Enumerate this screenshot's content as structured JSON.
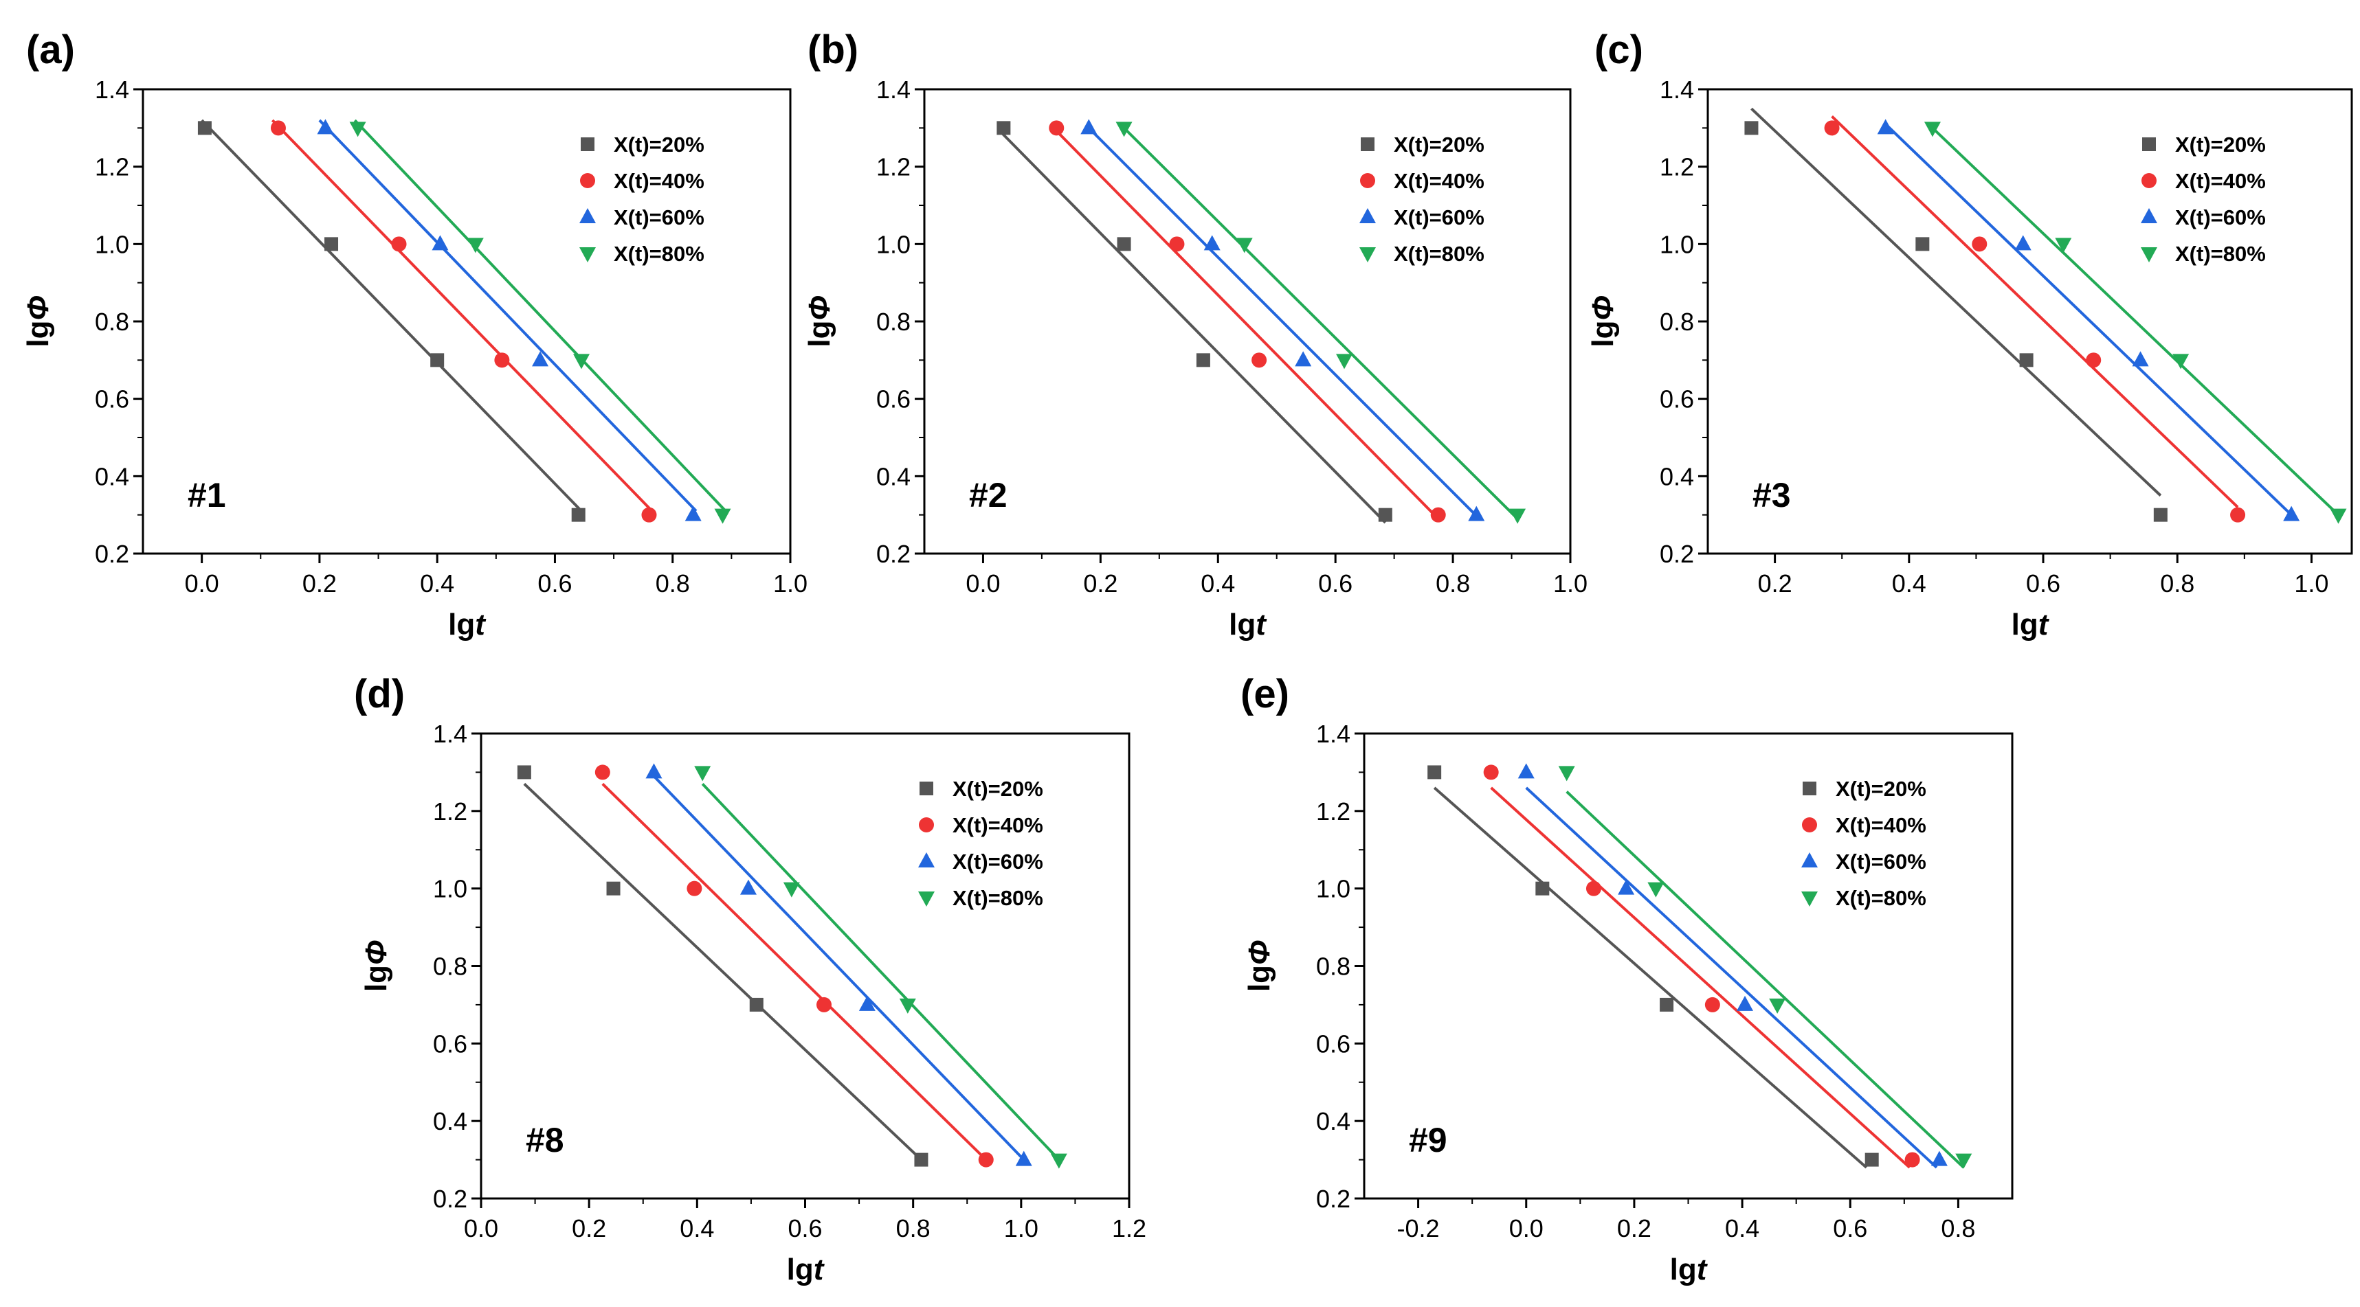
{
  "chart_data": [
    {
      "type": "scatter",
      "panel_label": "(a)",
      "sample": "#1",
      "xlabel_prefix": "lg",
      "xlabel_italic": "t",
      "ylabel_prefix": "lg",
      "ylabel_italic": "Φ",
      "xlim": [
        -0.1,
        1.0
      ],
      "ylim": [
        0.2,
        1.4
      ],
      "xticks": [
        0.0,
        0.2,
        0.4,
        0.6,
        0.8,
        1.0
      ],
      "xtick_labels": [
        "0.0",
        "0.2",
        "0.4",
        "0.6",
        "0.8",
        "1.0"
      ],
      "yticks": [
        0.2,
        0.4,
        0.6,
        0.8,
        1.0,
        1.2,
        1.4
      ],
      "ytick_labels": [
        "0.2",
        "0.4",
        "0.6",
        "0.8",
        "1.0",
        "1.2",
        "1.4"
      ],
      "legend_position": "top-right",
      "series": [
        {
          "name": "X(t)=20%",
          "marker": "square",
          "color": "#555555",
          "x": [
            0.005,
            0.22,
            0.4,
            0.64
          ],
          "y": [
            1.3,
            1.0,
            0.7,
            0.3
          ],
          "fit": [
            [
              0.0,
              1.32
            ],
            [
              0.645,
              0.31
            ]
          ]
        },
        {
          "name": "X(t)=40%",
          "marker": "circle",
          "color": "#ee3333",
          "x": [
            0.13,
            0.335,
            0.51,
            0.76
          ],
          "y": [
            1.3,
            1.0,
            0.7,
            0.3
          ],
          "fit": [
            [
              0.12,
              1.32
            ],
            [
              0.765,
              0.31
            ]
          ]
        },
        {
          "name": "X(t)=60%",
          "marker": "triangle-up",
          "color": "#2266dd",
          "x": [
            0.21,
            0.405,
            0.575,
            0.835
          ],
          "y": [
            1.3,
            1.0,
            0.7,
            0.3
          ],
          "fit": [
            [
              0.2,
              1.32
            ],
            [
              0.84,
              0.31
            ]
          ]
        },
        {
          "name": "X(t)=80%",
          "marker": "triangle-down",
          "color": "#22aa55",
          "x": [
            0.265,
            0.465,
            0.645,
            0.885
          ],
          "y": [
            1.3,
            1.0,
            0.7,
            0.3
          ],
          "fit": [
            [
              0.26,
              1.32
            ],
            [
              0.89,
              0.31
            ]
          ]
        }
      ]
    },
    {
      "type": "scatter",
      "panel_label": "(b)",
      "sample": "#2",
      "xlabel_prefix": "lg",
      "xlabel_italic": "t",
      "ylabel_prefix": "lg",
      "ylabel_italic": "Φ",
      "xlim": [
        -0.1,
        1.0
      ],
      "ylim": [
        0.2,
        1.4
      ],
      "xticks": [
        0.0,
        0.2,
        0.4,
        0.6,
        0.8,
        1.0
      ],
      "xtick_labels": [
        "0.0",
        "0.2",
        "0.4",
        "0.6",
        "0.8",
        "1.0"
      ],
      "yticks": [
        0.2,
        0.4,
        0.6,
        0.8,
        1.0,
        1.2,
        1.4
      ],
      "ytick_labels": [
        "0.2",
        "0.4",
        "0.6",
        "0.8",
        "1.0",
        "1.2",
        "1.4"
      ],
      "legend_position": "top-right",
      "series": [
        {
          "name": "X(t)=20%",
          "marker": "square",
          "color": "#555555",
          "x": [
            0.035,
            0.24,
            0.375,
            0.685
          ],
          "y": [
            1.3,
            1.0,
            0.7,
            0.3
          ],
          "fit": [
            [
              0.03,
              1.29
            ],
            [
              0.685,
              0.28
            ]
          ]
        },
        {
          "name": "X(t)=40%",
          "marker": "circle",
          "color": "#ee3333",
          "x": [
            0.125,
            0.33,
            0.47,
            0.775
          ],
          "y": [
            1.3,
            1.0,
            0.7,
            0.3
          ],
          "fit": [
            [
              0.12,
              1.3
            ],
            [
              0.775,
              0.29
            ]
          ]
        },
        {
          "name": "X(t)=60%",
          "marker": "triangle-up",
          "color": "#2266dd",
          "x": [
            0.18,
            0.39,
            0.545,
            0.84
          ],
          "y": [
            1.3,
            1.0,
            0.7,
            0.3
          ],
          "fit": [
            [
              0.18,
              1.3
            ],
            [
              0.845,
              0.29
            ]
          ]
        },
        {
          "name": "X(t)=80%",
          "marker": "triangle-down",
          "color": "#22aa55",
          "x": [
            0.24,
            0.445,
            0.615,
            0.91
          ],
          "y": [
            1.3,
            1.0,
            0.7,
            0.3
          ],
          "fit": [
            [
              0.24,
              1.3
            ],
            [
              0.91,
              0.29
            ]
          ]
        }
      ]
    },
    {
      "type": "scatter",
      "panel_label": "(c)",
      "sample": "#3",
      "xlabel_prefix": "lg",
      "xlabel_italic": "t",
      "ylabel_prefix": "lg",
      "ylabel_italic": "Φ",
      "xlim": [
        0.1,
        1.06
      ],
      "ylim": [
        0.2,
        1.4
      ],
      "xticks": [
        0.2,
        0.4,
        0.6,
        0.8,
        1.0
      ],
      "xtick_labels": [
        "0.2",
        "0.4",
        "0.6",
        "0.8",
        "1.0"
      ],
      "yticks": [
        0.2,
        0.4,
        0.6,
        0.8,
        1.0,
        1.2,
        1.4
      ],
      "ytick_labels": [
        "0.2",
        "0.4",
        "0.6",
        "0.8",
        "1.0",
        "1.2",
        "1.4"
      ],
      "legend_position": "top-right",
      "series": [
        {
          "name": "X(t)=20%",
          "marker": "square",
          "color": "#555555",
          "x": [
            0.165,
            0.42,
            0.575,
            0.775
          ],
          "y": [
            1.3,
            1.0,
            0.7,
            0.3
          ],
          "fit": [
            [
              0.165,
              1.35
            ],
            [
              0.775,
              0.35
            ]
          ]
        },
        {
          "name": "X(t)=40%",
          "marker": "circle",
          "color": "#ee3333",
          "x": [
            0.285,
            0.505,
            0.675,
            0.89
          ],
          "y": [
            1.3,
            1.0,
            0.7,
            0.3
          ],
          "fit": [
            [
              0.285,
              1.33
            ],
            [
              0.89,
              0.32
            ]
          ]
        },
        {
          "name": "X(t)=60%",
          "marker": "triangle-up",
          "color": "#2266dd",
          "x": [
            0.365,
            0.57,
            0.745,
            0.97
          ],
          "y": [
            1.3,
            1.0,
            0.7,
            0.3
          ],
          "fit": [
            [
              0.365,
              1.31
            ],
            [
              0.97,
              0.3
            ]
          ]
        },
        {
          "name": "X(t)=80%",
          "marker": "triangle-down",
          "color": "#22aa55",
          "x": [
            0.435,
            0.63,
            0.805,
            1.04
          ],
          "y": [
            1.3,
            1.0,
            0.7,
            0.3
          ],
          "fit": [
            [
              0.435,
              1.3
            ],
            [
              1.04,
              0.3
            ]
          ]
        }
      ]
    },
    {
      "type": "scatter",
      "panel_label": "(d)",
      "sample": "#8",
      "xlabel_prefix": "lg",
      "xlabel_italic": "t",
      "ylabel_prefix": "lg",
      "ylabel_italic": "Φ",
      "xlim": [
        0.0,
        1.2
      ],
      "ylim": [
        0.2,
        1.4
      ],
      "xticks": [
        0.0,
        0.2,
        0.4,
        0.6,
        0.8,
        1.0,
        1.2
      ],
      "xtick_labels": [
        "0.0",
        "0.2",
        "0.4",
        "0.6",
        "0.8",
        "1.0",
        "1.2"
      ],
      "yticks": [
        0.2,
        0.4,
        0.6,
        0.8,
        1.0,
        1.2,
        1.4
      ],
      "ytick_labels": [
        "0.2",
        "0.4",
        "0.6",
        "0.8",
        "1.0",
        "1.2",
        "1.4"
      ],
      "legend_position": "top-right",
      "series": [
        {
          "name": "X(t)=20%",
          "marker": "square",
          "color": "#555555",
          "x": [
            0.08,
            0.245,
            0.51,
            0.815
          ],
          "y": [
            1.3,
            1.0,
            0.7,
            0.3
          ],
          "fit": [
            [
              0.08,
              1.27
            ],
            [
              0.815,
              0.3
            ]
          ]
        },
        {
          "name": "X(t)=40%",
          "marker": "circle",
          "color": "#ee3333",
          "x": [
            0.225,
            0.395,
            0.635,
            0.935
          ],
          "y": [
            1.3,
            1.0,
            0.7,
            0.3
          ],
          "fit": [
            [
              0.225,
              1.27
            ],
            [
              0.935,
              0.3
            ]
          ]
        },
        {
          "name": "X(t)=60%",
          "marker": "triangle-up",
          "color": "#2266dd",
          "x": [
            0.32,
            0.495,
            0.715,
            1.005
          ],
          "y": [
            1.3,
            1.0,
            0.7,
            0.3
          ],
          "fit": [
            [
              0.32,
              1.29
            ],
            [
              1.005,
              0.3
            ]
          ]
        },
        {
          "name": "X(t)=80%",
          "marker": "triangle-down",
          "color": "#22aa55",
          "x": [
            0.41,
            0.575,
            0.79,
            1.07
          ],
          "y": [
            1.3,
            1.0,
            0.7,
            0.3
          ],
          "fit": [
            [
              0.41,
              1.27
            ],
            [
              1.07,
              0.3
            ]
          ]
        }
      ]
    },
    {
      "type": "scatter",
      "panel_label": "(e)",
      "sample": "#9",
      "xlabel_prefix": "lg",
      "xlabel_italic": "t",
      "ylabel_prefix": "lg",
      "ylabel_italic": "Φ",
      "xlim": [
        -0.3,
        0.9
      ],
      "ylim": [
        0.2,
        1.4
      ],
      "xticks": [
        -0.2,
        0.0,
        0.2,
        0.4,
        0.6,
        0.8
      ],
      "xtick_labels": [
        "-0.2",
        "0.0",
        "0.2",
        "0.4",
        "0.6",
        "0.8"
      ],
      "yticks": [
        0.2,
        0.4,
        0.6,
        0.8,
        1.0,
        1.2,
        1.4
      ],
      "ytick_labels": [
        "0.2",
        "0.4",
        "0.6",
        "0.8",
        "1.0",
        "1.2",
        "1.4"
      ],
      "legend_position": "top-right",
      "series": [
        {
          "name": "X(t)=20%",
          "marker": "square",
          "color": "#555555",
          "x": [
            -0.17,
            0.03,
            0.26,
            0.64
          ],
          "y": [
            1.3,
            1.0,
            0.7,
            0.3
          ],
          "fit": [
            [
              -0.17,
              1.26
            ],
            [
              0.63,
              0.28
            ]
          ]
        },
        {
          "name": "X(t)=40%",
          "marker": "circle",
          "color": "#ee3333",
          "x": [
            -0.065,
            0.125,
            0.345,
            0.715
          ],
          "y": [
            1.3,
            1.0,
            0.7,
            0.3
          ],
          "fit": [
            [
              -0.065,
              1.26
            ],
            [
              0.71,
              0.28
            ]
          ]
        },
        {
          "name": "X(t)=60%",
          "marker": "triangle-up",
          "color": "#2266dd",
          "x": [
            0.0,
            0.185,
            0.405,
            0.765
          ],
          "y": [
            1.3,
            1.0,
            0.7,
            0.3
          ],
          "fit": [
            [
              0.0,
              1.26
            ],
            [
              0.76,
              0.28
            ]
          ]
        },
        {
          "name": "X(t)=80%",
          "marker": "triangle-down",
          "color": "#22aa55",
          "x": [
            0.075,
            0.24,
            0.465,
            0.81
          ],
          "y": [
            1.3,
            1.0,
            0.7,
            0.3
          ],
          "fit": [
            [
              0.075,
              1.25
            ],
            [
              0.81,
              0.28
            ]
          ]
        }
      ]
    }
  ]
}
